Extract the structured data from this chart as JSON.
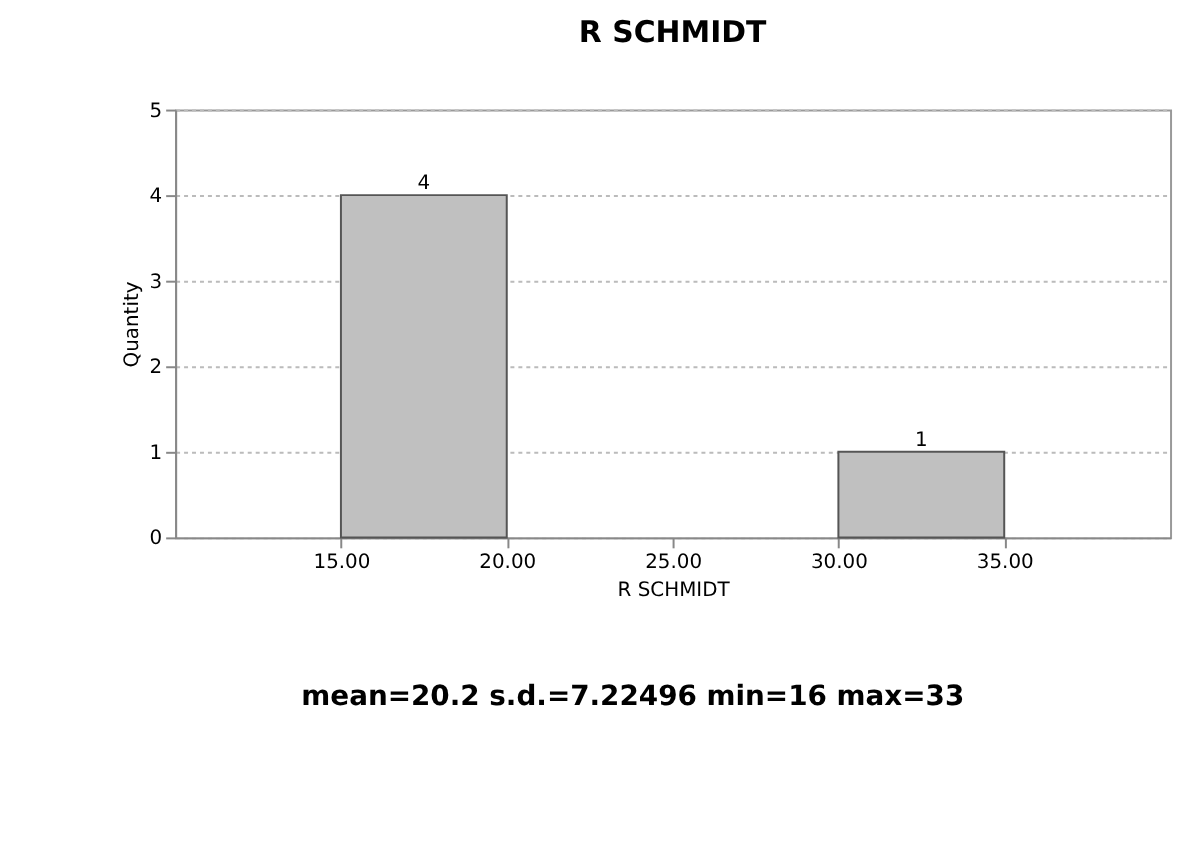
{
  "chart_data": {
    "type": "histogram",
    "title": "R SCHMIDT",
    "xlabel": "R SCHMIDT",
    "ylabel": "Quantity",
    "bins": [
      15,
      20,
      25,
      30,
      35
    ],
    "values": [
      4,
      0,
      0,
      1
    ],
    "color": "#c0c0c0",
    "xlim": [
      10,
      40
    ],
    "xticks": [
      {
        "value": 15,
        "label": "15.00"
      },
      {
        "value": 20,
        "label": "20.00"
      },
      {
        "value": 25,
        "label": "25.00"
      },
      {
        "value": 30,
        "label": "30.00"
      },
      {
        "value": 35,
        "label": "35.00"
      }
    ],
    "ylim": [
      0,
      5
    ],
    "yticks": [
      0,
      1,
      2,
      3,
      4,
      5
    ],
    "grid": "y",
    "value_labels": [
      "4",
      null,
      null,
      "1"
    ],
    "annotations": [
      "mean=20.2 s.d.=7.22496 min=16 max=33"
    ]
  }
}
